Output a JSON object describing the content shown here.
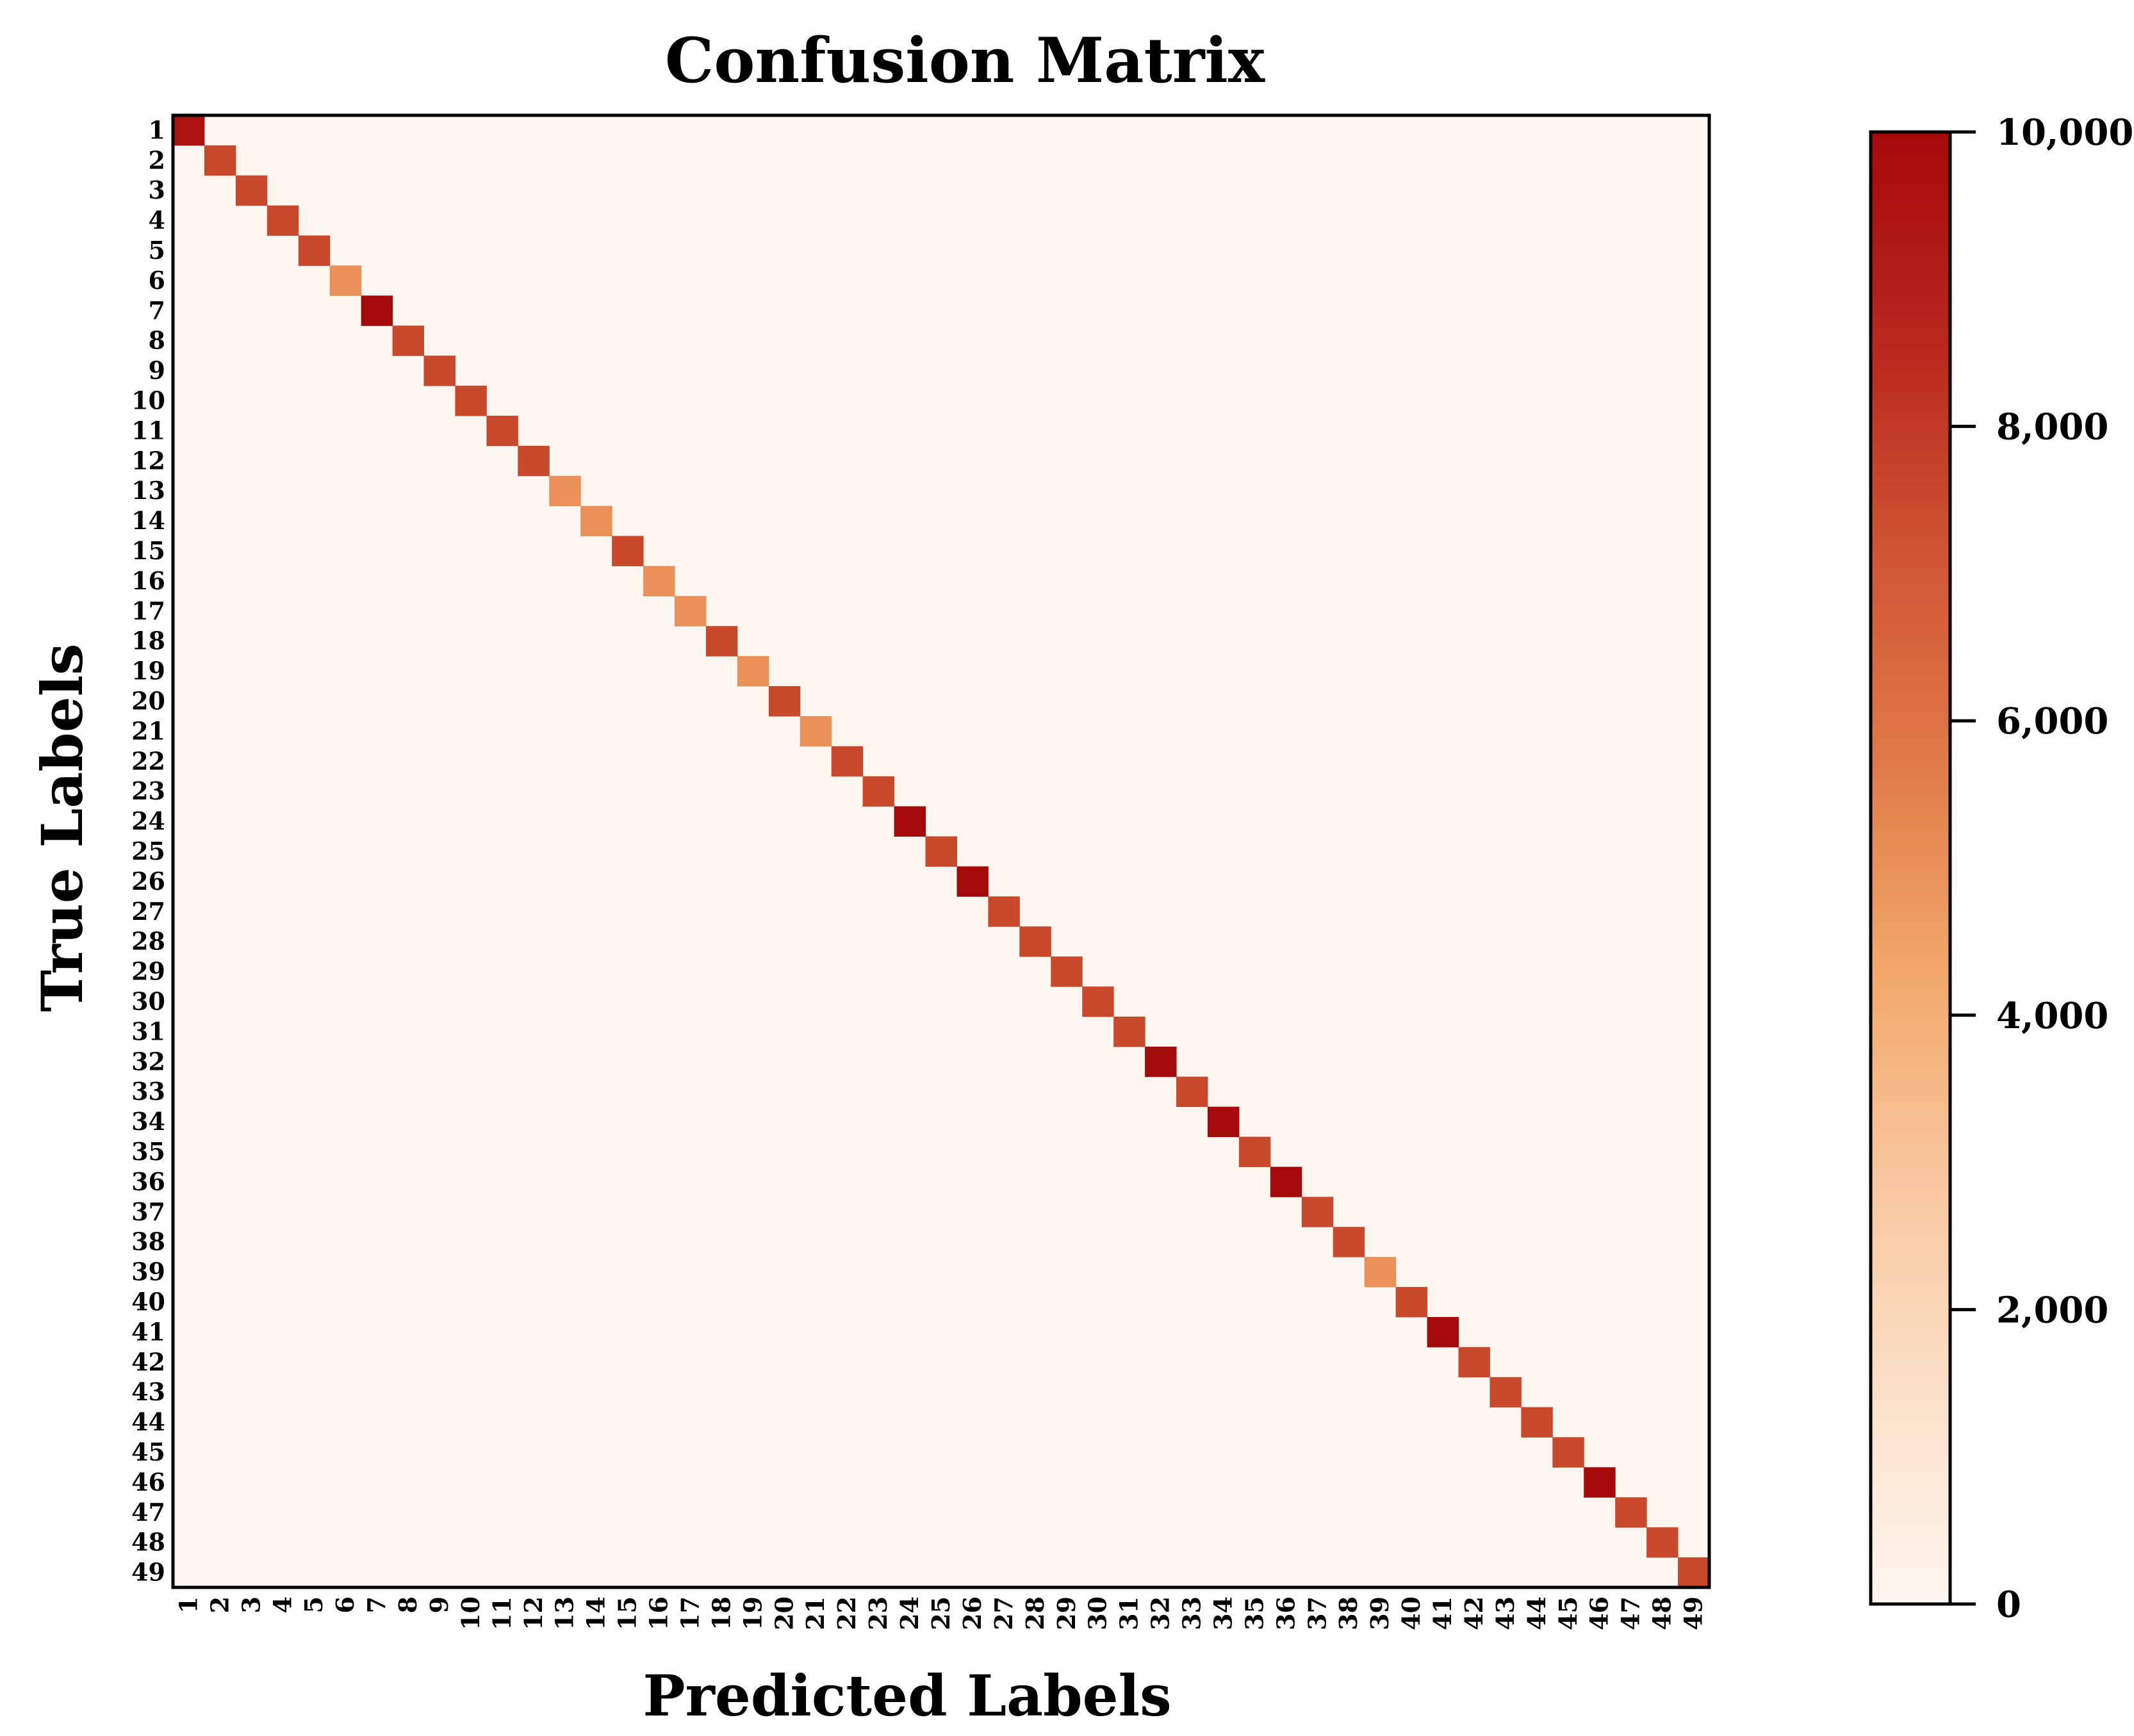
{
  "chart_data": {
    "type": "heatmap",
    "title": "Confusion Matrix",
    "xlabel": "Predicted Labels",
    "ylabel": "True Labels",
    "labels": [
      "1",
      "2",
      "3",
      "4",
      "5",
      "6",
      "7",
      "8",
      "9",
      "10",
      "11",
      "12",
      "13",
      "14",
      "15",
      "16",
      "17",
      "18",
      "19",
      "20",
      "21",
      "22",
      "23",
      "24",
      "25",
      "26",
      "27",
      "28",
      "29",
      "30",
      "31",
      "32",
      "33",
      "34",
      "35",
      "36",
      "37",
      "38",
      "39",
      "40",
      "41",
      "42",
      "43",
      "44",
      "45",
      "46",
      "47",
      "48",
      "49"
    ],
    "diagonal_values": [
      9500,
      7500,
      7500,
      7500,
      7500,
      5000,
      10000,
      7500,
      7500,
      7500,
      7500,
      7500,
      5000,
      5000,
      7500,
      5000,
      5000,
      7500,
      5000,
      7500,
      5000,
      7500,
      7500,
      10000,
      7500,
      10000,
      7500,
      7500,
      7500,
      7500,
      7500,
      10000,
      7500,
      10000,
      7500,
      10000,
      7500,
      7500,
      5000,
      7500,
      10000,
      7500,
      7500,
      7500,
      7500,
      10000,
      7500,
      7500,
      7500
    ],
    "off_diagonal_value": 0,
    "colorbar": {
      "min": 0,
      "max": 10000,
      "ticks": [
        0,
        2000,
        4000,
        6000,
        8000,
        10000
      ],
      "tick_labels": [
        "0",
        "2,000",
        "4,000",
        "6,000",
        "8,000",
        "10,000"
      ]
    },
    "colorscale": [
      "#fef6ef",
      "#fbe0c8",
      "#f8c79f",
      "#f2a86a",
      "#e07a48",
      "#cf5433",
      "#b8261c",
      "#a50a0a"
    ]
  }
}
